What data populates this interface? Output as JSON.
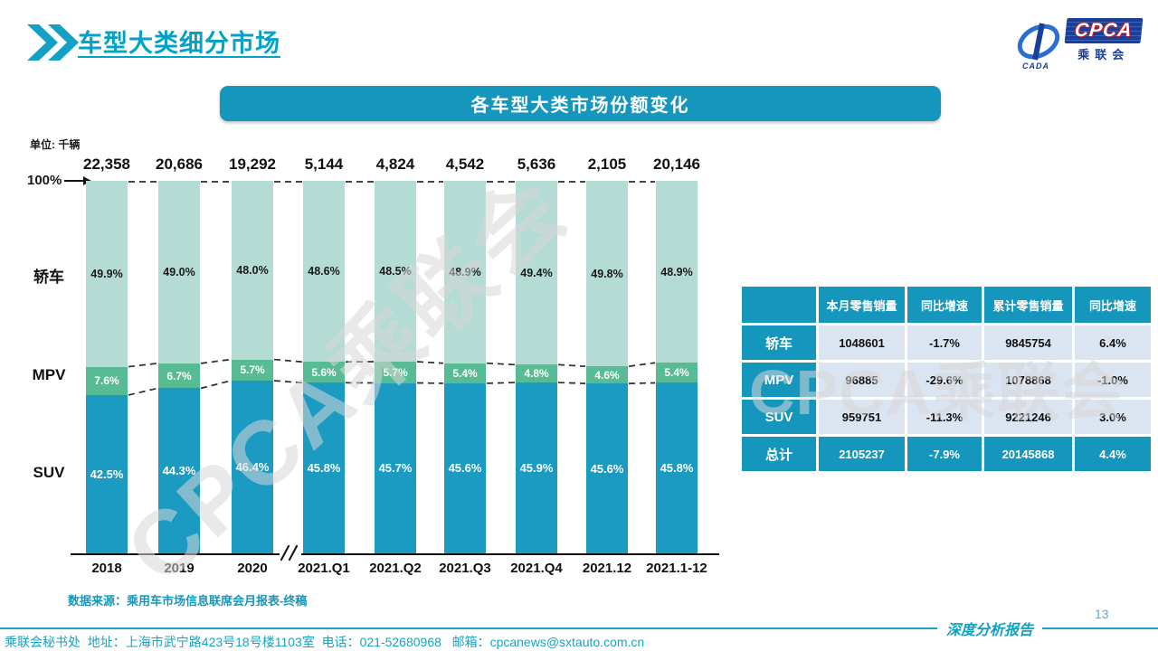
{
  "page": {
    "title": "车型大类细分市场",
    "page_number": "13",
    "report_label": "深度分析报告",
    "watermark": "CPCA乘联会",
    "footer": "乘联会秘书处  地址：上海市武宁路423号18号楼1103室  电话：021-52680968   邮箱：cpcanews@sxtauto.com.cn"
  },
  "logo": {
    "cpca": "CPCA",
    "cn": "乘联会",
    "cada": "CADA"
  },
  "banner": {
    "title": "各车型大类市场份额变化"
  },
  "chart_data": {
    "type": "bar",
    "stacked": true,
    "unit_label": "单位: 千辆",
    "axis_100_label": "100%",
    "categories": [
      "2018",
      "2019",
      "2020",
      "2021.Q1",
      "2021.Q2",
      "2021.Q3",
      "2021.Q4",
      "2021.12",
      "2021.1-12"
    ],
    "totals": [
      "22,358",
      "20,686",
      "19,292",
      "5,144",
      "4,824",
      "4,542",
      "5,636",
      "2,105",
      "20,146"
    ],
    "series": [
      {
        "name": "轿车",
        "color": "#b4dcd5",
        "text_color": "#1a1a1a",
        "values": [
          49.9,
          49.0,
          48.0,
          48.6,
          48.5,
          48.9,
          49.4,
          49.8,
          48.9
        ]
      },
      {
        "name": "MPV",
        "color": "#57bb93",
        "text_color": "#ffffff",
        "values": [
          7.6,
          6.7,
          5.7,
          5.6,
          5.7,
          5.4,
          4.8,
          4.6,
          5.4
        ]
      },
      {
        "name": "SUV",
        "color": "#1b9ac2",
        "text_color": "#ffffff",
        "values": [
          42.5,
          44.3,
          46.4,
          45.8,
          45.7,
          45.6,
          45.9,
          45.6,
          45.8
        ]
      }
    ],
    "legend_position": "left",
    "ylim": [
      0,
      100
    ],
    "grid": false,
    "source_note": "数据来源：乘用车市场信息联席会月报表-终稿"
  },
  "table": {
    "headers": [
      "",
      "本月零售销量",
      "同比增速",
      "累计零售销量",
      "同比增速"
    ],
    "rows": [
      {
        "label": "轿车",
        "cells": [
          "1048601",
          "-1.7%",
          "9845754",
          "6.4%"
        ],
        "total": false
      },
      {
        "label": "MPV",
        "cells": [
          "96885",
          "-29.6%",
          "1078868",
          "-1.0%"
        ],
        "total": false
      },
      {
        "label": "SUV",
        "cells": [
          "959751",
          "-11.3%",
          "9221246",
          "3.0%"
        ],
        "total": false
      },
      {
        "label": "总计",
        "cells": [
          "2105237",
          "-7.9%",
          "20145868",
          "4.4%"
        ],
        "total": true
      }
    ]
  },
  "colors": {
    "accent_teal": "#1596bc",
    "title_cyan": "#00a2c6",
    "sedan_segment": "#b4dcd5",
    "mpv_segment": "#57bb93",
    "suv_segment": "#1b9ac2",
    "table_cell_bg": "#dbe5f1",
    "footer_teal": "#16a3c4"
  }
}
